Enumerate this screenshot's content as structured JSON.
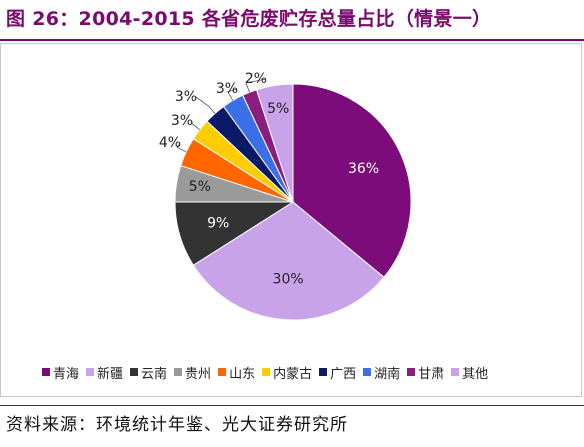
{
  "title": "图 26：2004-2015 各省危废贮存总量占比（情景一）",
  "source": "资料来源：环境统计年鉴、光大证券研究所",
  "chart_data": {
    "type": "pie",
    "title": "",
    "start_angle_deg": 0,
    "direction": "clockwise",
    "legend_position": "bottom",
    "slices": [
      {
        "label": "青海",
        "value": 36,
        "display": "36%",
        "color": "#7b0c7a",
        "label_color": "#ffffff",
        "label_inside": true
      },
      {
        "label": "新疆",
        "value": 30,
        "display": "30%",
        "color": "#c9a3ea",
        "label_color": "#222222",
        "label_inside": true
      },
      {
        "label": "云南",
        "value": 9,
        "display": "9%",
        "color": "#333333",
        "label_color": "#ffffff",
        "label_inside": true
      },
      {
        "label": "贵州",
        "value": 5,
        "display": "5%",
        "color": "#9a9a9a",
        "label_color": "#222222",
        "label_inside": true
      },
      {
        "label": "山东",
        "value": 4,
        "display": "4%",
        "color": "#ff6600",
        "label_color": "#222222",
        "label_inside": false
      },
      {
        "label": "内蒙古",
        "value": 3,
        "display": "3%",
        "color": "#ffcc00",
        "label_color": "#222222",
        "label_inside": false
      },
      {
        "label": "广西",
        "value": 3,
        "display": "3%",
        "color": "#0a1a66",
        "label_color": "#222222",
        "label_inside": false
      },
      {
        "label": "湖南",
        "value": 3,
        "display": "3%",
        "color": "#3a6fe8",
        "label_color": "#222222",
        "label_inside": false
      },
      {
        "label": "甘肃",
        "value": 2,
        "display": "2%",
        "color": "#8a1e7e",
        "label_color": "#222222",
        "label_inside": false
      },
      {
        "label": "其他",
        "value": 5,
        "display": "5%",
        "color": "#c9a3ea",
        "label_color": "#222222",
        "label_inside": true
      }
    ]
  }
}
